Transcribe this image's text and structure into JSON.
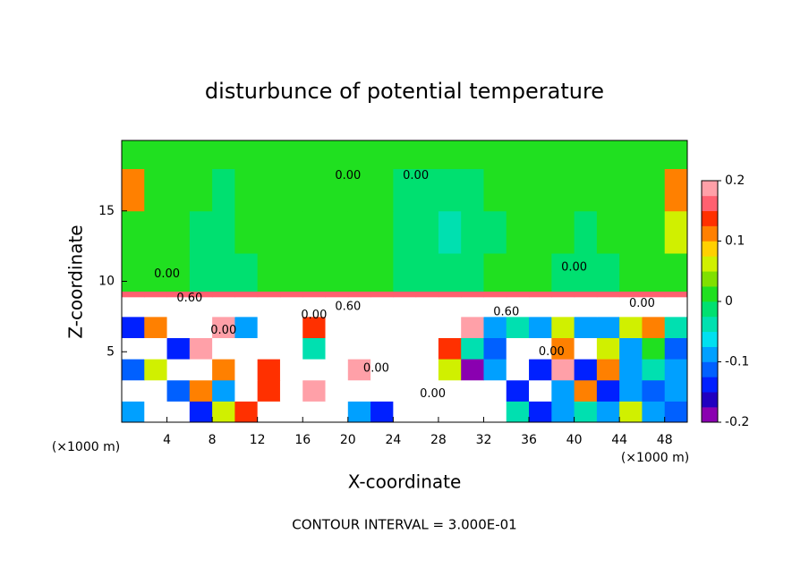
{
  "chart_data": {
    "type": "heatmap",
    "title": "disturbunce of potential temperature",
    "xlabel": "X-coordinate",
    "ylabel": "Z-coordinate",
    "x_unit_label": "(×1000 m)",
    "footer": "CONTOUR INTERVAL = 3.000E-01",
    "xlim": [
      0,
      50
    ],
    "ylim": [
      0,
      20
    ],
    "xticks": [
      4,
      8,
      12,
      16,
      20,
      24,
      28,
      32,
      36,
      40,
      44,
      48
    ],
    "yticks": [
      5,
      10,
      15
    ],
    "x_edges": [
      0,
      2,
      4,
      6,
      8,
      10,
      12,
      14,
      16,
      18,
      20,
      22,
      24,
      26,
      28,
      30,
      32,
      34,
      36,
      38,
      40,
      42,
      44,
      46,
      48,
      50
    ],
    "y_edges": [
      0,
      1.5,
      3,
      4.5,
      6,
      7.5,
      8.9,
      9.3,
      12,
      15,
      18,
      20
    ],
    "z": [
      [
        -0.1,
        -0.3,
        -0.3,
        -0.15,
        0.05,
        0.15,
        -0.3,
        -0.3,
        0.3,
        0.3,
        -0.1,
        -0.15,
        0.3,
        0.3,
        0.3,
        0.3,
        0.3,
        -0.05,
        -0.15,
        -0.1,
        -0.05,
        -0.1,
        0.05,
        -0.08,
        -0.12
      ],
      [
        -0.3,
        -0.3,
        -0.12,
        0.1,
        -0.1,
        -0.3,
        0.15,
        0.3,
        0.2,
        -0.3,
        -0.3,
        0.3,
        0.3,
        0.3,
        0.3,
        0.3,
        0.25,
        -0.15,
        -0.3,
        -0.1,
        0.1,
        -0.15,
        -0.1,
        -0.12,
        -0.1
      ],
      [
        -0.12,
        0.05,
        -0.3,
        -0.3,
        0.1,
        0.3,
        0.15,
        -0.3,
        -0.3,
        -0.3,
        0.2,
        0.3,
        0.3,
        0.3,
        0.05,
        -0.2,
        -0.1,
        -0.3,
        -0.15,
        0.2,
        -0.15,
        0.1,
        -0.08,
        -0.05,
        -0.1
      ],
      [
        0.3,
        0.3,
        -0.15,
        0.2,
        0.3,
        0.3,
        -0.3,
        -0.3,
        -0.05,
        0.3,
        0.3,
        -0.3,
        -0.3,
        0.3,
        0.15,
        -0.05,
        -0.12,
        -0.3,
        -0.3,
        0.1,
        -0.3,
        0.05,
        -0.1,
        0.02,
        -0.12
      ],
      [
        -0.15,
        0.1,
        0.3,
        0.3,
        0.2,
        -0.1,
        -0.3,
        -0.3,
        0.15,
        0.3,
        0.3,
        -0.3,
        0.3,
        0.3,
        0.3,
        0.2,
        -0.1,
        -0.05,
        -0.1,
        0.05,
        -0.1,
        -0.08,
        0.05,
        0.1,
        -0.05
      ],
      [
        0.3,
        0.3,
        0.3,
        0.3,
        0.3,
        0.3,
        -0.3,
        -0.3,
        0.3,
        0.3,
        -0.3,
        0.3,
        0.3,
        -0.3,
        0.3,
        0.3,
        -0.3,
        0.3,
        0.3,
        0.3,
        -0.3,
        0.3,
        0.3,
        -0.3,
        0.3
      ],
      [
        0.16,
        0.16,
        0.16,
        0.16,
        0.16,
        0.16,
        0.16,
        0.16,
        0.16,
        0.16,
        0.16,
        0.16,
        0.16,
        0.16,
        0.16,
        0.16,
        0.16,
        0.16,
        0.16,
        0.16,
        0.16,
        0.16,
        0.16,
        0.16,
        0.16
      ],
      [
        0,
        0.01,
        0,
        -0.01,
        -0.02,
        -0.02,
        0.01,
        0.01,
        0,
        0,
        0.01,
        0,
        -0.01,
        -0.02,
        -0.02,
        -0.01,
        0,
        0.01,
        0.01,
        -0.01,
        -0.02,
        -0.01,
        0,
        0.01,
        0
      ],
      [
        0.01,
        0.02,
        0.01,
        -0.01,
        -0.01,
        0.01,
        0.01,
        0.02,
        0.01,
        0.01,
        0.01,
        0,
        -0.02,
        -0.02,
        -0.03,
        -0.02,
        -0.01,
        0,
        0.01,
        0,
        -0.01,
        0,
        0.01,
        0.01,
        0.05
      ],
      [
        0.1,
        0.02,
        0.01,
        0.01,
        -0.01,
        0.01,
        0.02,
        0.02,
        0.01,
        0.02,
        0.01,
        0.01,
        -0.01,
        -0.02,
        -0.02,
        -0.01,
        0,
        0.01,
        0.02,
        0.01,
        0,
        0.01,
        0.02,
        0.01,
        0.1
      ],
      [
        0.01,
        0.02,
        0.02,
        0.01,
        0.01,
        0.02,
        0.02,
        0.02,
        0.02,
        0.02,
        0.02,
        0.02,
        0.01,
        0.01,
        0.01,
        0.01,
        0.01,
        0.02,
        0.02,
        0.01,
        0.01,
        0.02,
        0.02,
        0.01,
        0.01
      ]
    ],
    "clim": [
      -0.2,
      0.2
    ],
    "cticks": [
      -0.2,
      -0.1,
      0,
      0.1,
      0.2
    ],
    "colormap": [
      "#8a00b0",
      "#2000c0",
      "#0020ff",
      "#0060ff",
      "#00a0ff",
      "#00e0f0",
      "#00e0b0",
      "#00e070",
      "#20e020",
      "#80e000",
      "#d0f000",
      "#ffd000",
      "#ff8000",
      "#ff3000",
      "#ff6070",
      "#ffa0a8"
    ],
    "outside_color": "#ffffff",
    "annotations": [
      {
        "text": "0.00",
        "x": 4,
        "y": 10.5
      },
      {
        "text": "0.00",
        "x": 20,
        "y": 17.5
      },
      {
        "text": "0.00",
        "x": 26,
        "y": 17.5
      },
      {
        "text": "0.00",
        "x": 40,
        "y": 11
      },
      {
        "text": "0.00",
        "x": 9,
        "y": 6.5
      },
      {
        "text": "0.00",
        "x": 22.5,
        "y": 3.8
      },
      {
        "text": "0.00",
        "x": 27.5,
        "y": 2
      },
      {
        "text": "0.00",
        "x": 38,
        "y": 5
      },
      {
        "text": "0.00",
        "x": 17,
        "y": 7.6
      },
      {
        "text": "0.00",
        "x": 46,
        "y": 8.4
      },
      {
        "text": "0.60",
        "x": 6,
        "y": 8.8
      },
      {
        "text": "0.60",
        "x": 20,
        "y": 8.2
      },
      {
        "text": "0.60",
        "x": 34,
        "y": 7.8
      }
    ]
  }
}
